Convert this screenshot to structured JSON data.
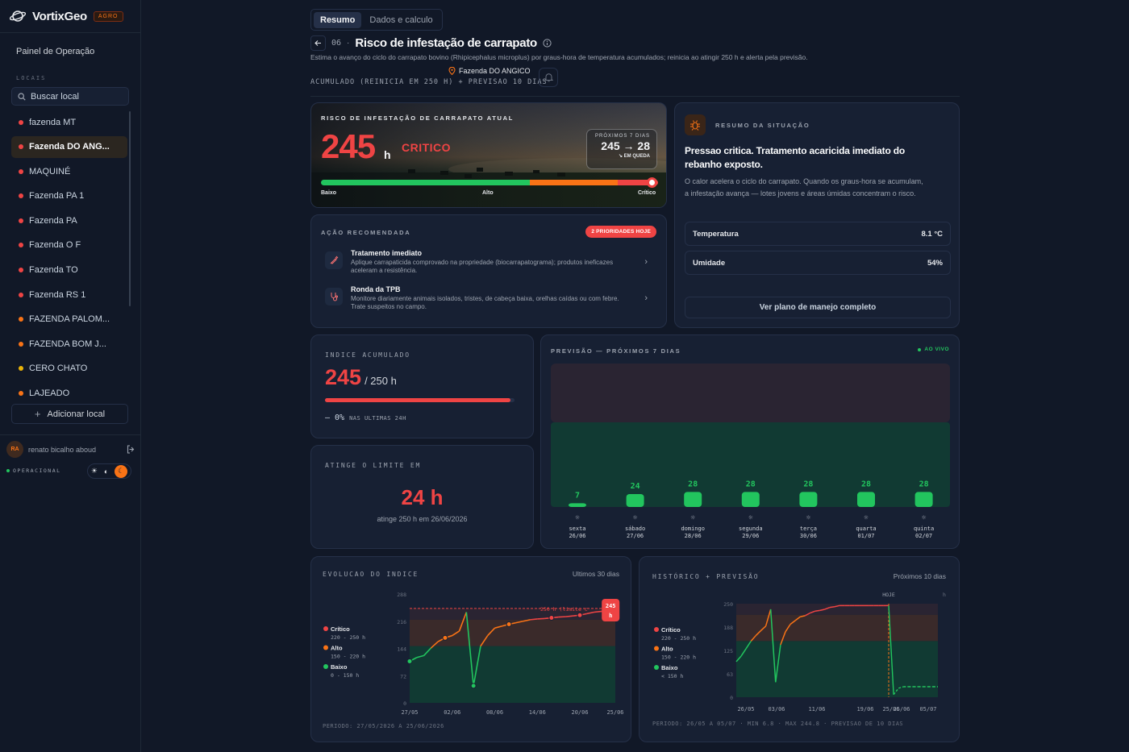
{
  "brand": {
    "name": "VortixGeo",
    "badge": "AGRO",
    "accent": "#f97316"
  },
  "sidebar": {
    "panel_label": "Painel de Operação",
    "locais_label": "LOCAIS",
    "search_placeholder": "Buscar local",
    "items": [
      {
        "label": "fazenda MT",
        "status": "red"
      },
      {
        "label": "Fazenda DO ANG...",
        "status": "red",
        "active": true
      },
      {
        "label": "MAQUINÉ",
        "status": "red"
      },
      {
        "label": "Fazenda PA 1",
        "status": "red"
      },
      {
        "label": "Fazenda PA",
        "status": "red"
      },
      {
        "label": "Fazenda O F",
        "status": "red"
      },
      {
        "label": "Fazenda TO",
        "status": "red"
      },
      {
        "label": "Fazenda RS 1",
        "status": "red"
      },
      {
        "label": "FAZENDA PALOM...",
        "status": "orange"
      },
      {
        "label": "FAZENDA BOM J...",
        "status": "orange"
      },
      {
        "label": "CERO CHATO",
        "status": "yellow"
      },
      {
        "label": "LAJEADO",
        "status": "orange"
      }
    ],
    "add_label": "Adicionar local",
    "user": {
      "initials": "RA",
      "name": "renato bicalho aboud"
    },
    "status": "OPERACIONAL"
  },
  "header": {
    "tabs": [
      {
        "label": "Resumo",
        "active": true
      },
      {
        "label": "Dados e calculo",
        "active": false
      }
    ],
    "step": "06",
    "title": "Risco de infestação de carrapato",
    "description": "Estima o avanço do ciclo do carrapato bovino (Rhipicephalus microplus) por graus-hora de temperatura acumulados; reinicia ao atingir 250 h e alerta pela previsão.",
    "farm": "Fazenda DO ANGICO",
    "accum": "ACUMULADO (REINICIA EM 250 H) + PREVISAO 10 DIAS"
  },
  "risk": {
    "label": "RISCO DE INFESTAÇÃO DE CARRAPATO ATUAL",
    "value": "245",
    "unit": "h",
    "level": "CRITICO",
    "next_label": "PRÓXIMOS 7 DIAS",
    "next_value": "245 → 28",
    "next_trend": "EM QUEDA",
    "scale": {
      "low": "Baixo",
      "high": "Alto",
      "crit": "Crítico"
    },
    "fraction": 0.98
  },
  "acao": {
    "label": "AÇÃO RECOMENDADA",
    "badge": "2 PRIORIDADES HOJE",
    "items": [
      {
        "title": "Tratamento imediato",
        "text": "Aplique carrapaticida comprovado na propriedade (biocarrapatograma); produtos ineficazes aceleram a resistência."
      },
      {
        "title": "Ronda da TPB",
        "text": "Monitore diariamente animais isolados, tristes, de cabeça baixa, orelhas caídas ou com febre. Trate suspeitos no campo."
      }
    ]
  },
  "resumo": {
    "label": "RESUMO DA SITUAÇÃO",
    "title": "Pressao critica. Tratamento acaricida imediato do rebanho exposto.",
    "text": "O calor acelera o ciclo do carrapato. Quando os graus-hora se acumulam, a infestação avança — lotes jovens e áreas úmidas concentram o risco.",
    "metrics": [
      {
        "label": "Temperatura",
        "value": "8.1 °C"
      },
      {
        "label": "Umidade",
        "value": "54%"
      }
    ],
    "button": "Ver plano de manejo completo"
  },
  "indice": {
    "label": "INDICE ACUMULADO",
    "value": "245",
    "max": "/ 250 h",
    "fraction": 0.98,
    "delta": "— 0%",
    "delta_label": "NAS ULTIMAS 24H"
  },
  "limite": {
    "label": "ATINGE O LIMITE EM",
    "value": "24 h",
    "sub": "atinge 250 h em 26/06/2026"
  },
  "previsao": {
    "label": "PREVISÃO — PRÓXIMOS 7 DIAS",
    "live": "AO VIVO",
    "days": [
      {
        "value": "7",
        "day": "sexta",
        "date": "26/06"
      },
      {
        "value": "24",
        "day": "sábado",
        "date": "27/06"
      },
      {
        "value": "28",
        "day": "domingo",
        "date": "28/06"
      },
      {
        "value": "28",
        "day": "segunda",
        "date": "29/06"
      },
      {
        "value": "28",
        "day": "terça",
        "date": "30/06"
      },
      {
        "value": "28",
        "day": "quarta",
        "date": "01/07"
      },
      {
        "value": "28",
        "day": "quinta",
        "date": "02/07"
      }
    ]
  },
  "legend": {
    "crit": "Crítico",
    "crit_range": "220 - 250 h",
    "alto": "Alto",
    "alto_range": "150 - 220 h",
    "baixo": "Baixo",
    "baixo_range": "0 - 150 h",
    "baixo_range2": "< 150 h"
  },
  "chart_data": [
    {
      "type": "line",
      "title": "EVOLUCAO DO INDICE",
      "subtitle": "Ultimos 30 dias",
      "ylim": [
        0,
        288
      ],
      "yticks": [
        "288",
        "216",
        "144",
        "72",
        "0"
      ],
      "xticks": [
        "27/05",
        "02/06",
        "08/06",
        "14/06",
        "20/06",
        "25/06"
      ],
      "threshold_label": "250 h (limite c",
      "current_label": "245 h",
      "x": [
        0,
        1,
        2,
        3,
        4,
        5,
        6,
        7,
        8,
        9,
        10,
        11,
        12,
        13,
        14,
        15,
        16,
        17,
        18,
        19,
        20,
        21,
        22,
        23,
        24,
        25,
        26,
        27,
        28,
        29
      ],
      "series": [
        {
          "values": [
            110,
            120,
            125,
            145,
            162,
            172,
            178,
            190,
            240,
            45,
            150,
            178,
            198,
            203,
            208,
            212,
            216,
            220,
            222,
            223,
            225,
            227,
            228,
            230,
            232,
            236,
            240,
            242,
            244,
            245
          ]
        }
      ],
      "footer": "PERIODO: 27/05/2026 A 25/06/2026"
    },
    {
      "type": "line",
      "title": "HISTÓRICO + PREVISÃO",
      "subtitle": "Próximos 10 dias",
      "ylim": [
        0,
        250
      ],
      "yticks": [
        "250",
        "188",
        "125",
        "63",
        "0"
      ],
      "xticks": [
        "26/05",
        "03/06",
        "11/06",
        "19/06",
        "25/06",
        "26/06",
        "05/07"
      ],
      "today_label": "HOJE",
      "unit": "h",
      "series": [
        {
          "name": "histórico",
          "values": [
            95,
            110,
            130,
            150,
            165,
            178,
            190,
            235,
            40,
            140,
            175,
            195,
            205,
            215,
            218,
            225,
            230,
            232,
            235,
            240,
            242,
            245,
            245,
            245,
            245,
            245,
            245,
            245,
            245,
            245,
            245,
            245
          ]
        },
        {
          "name": "previsão",
          "values": [
            245,
            7,
            24,
            28,
            28,
            28,
            28,
            28,
            28,
            28,
            28
          ]
        }
      ],
      "footer": "PERIODO: 26/05 A 05/07 · MIN 6.8 · MAX 244.8 · PREVISAO DE 10 DIAS"
    }
  ],
  "colors": {
    "crit": "#ef4444",
    "alto": "#f97316",
    "baixo": "#22c55e",
    "yellow": "#eab308"
  }
}
